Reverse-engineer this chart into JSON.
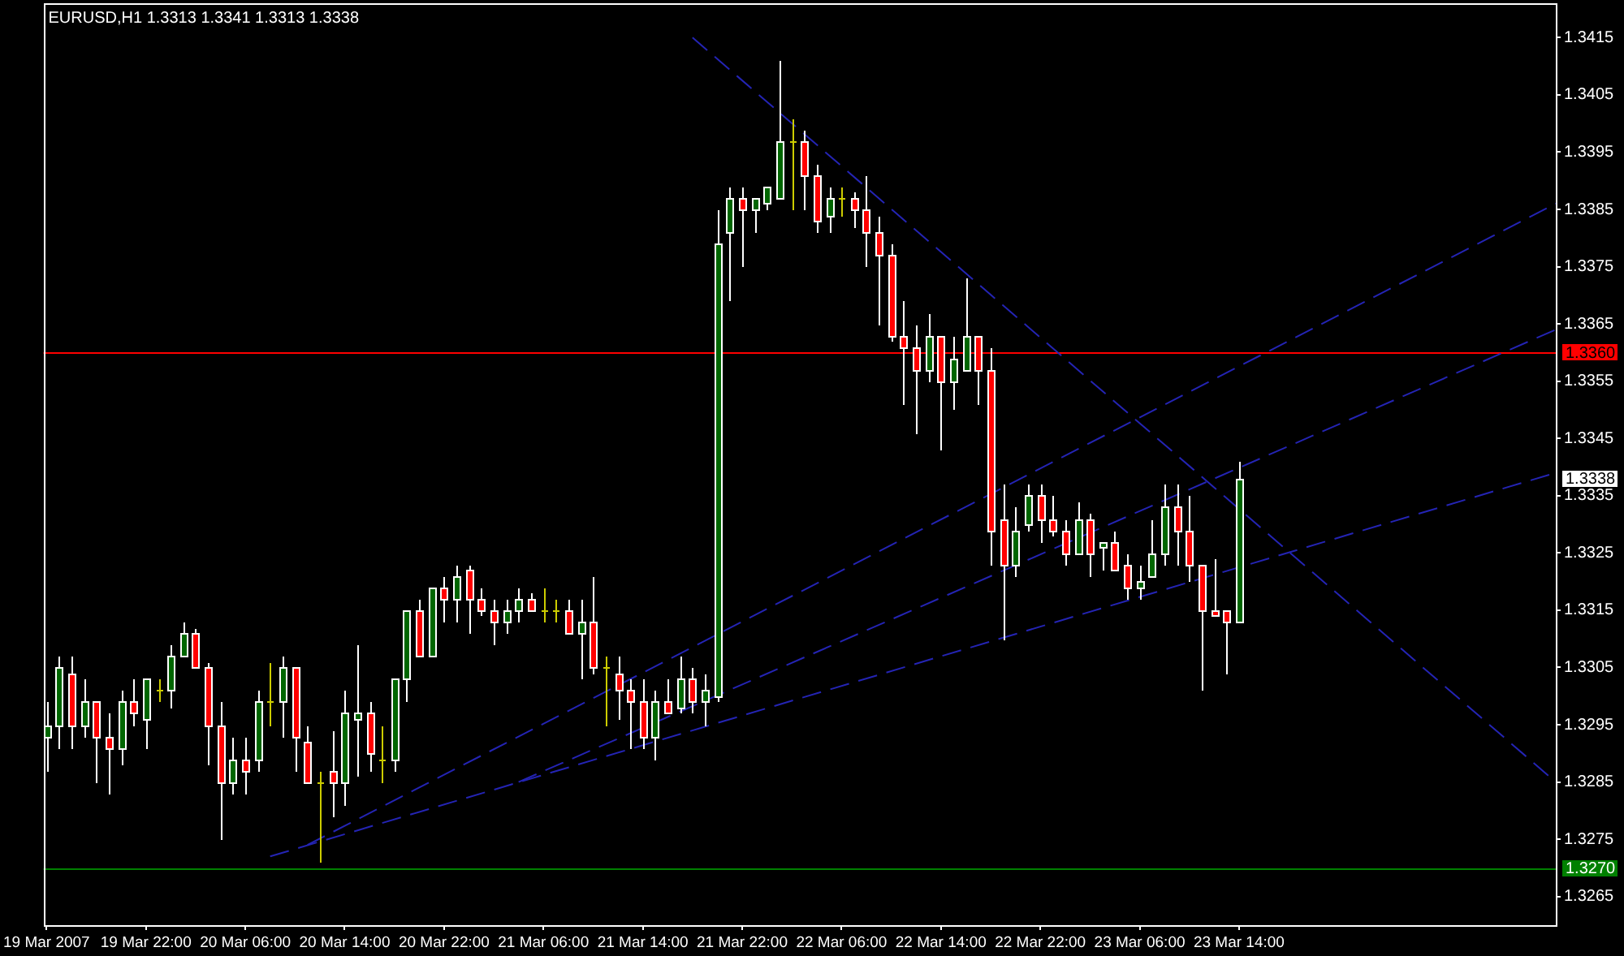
{
  "chart_data": {
    "type": "candlestick",
    "title": "EURUSD,H1 1.3313 1.3341 1.3313 1.3338",
    "x": [
      "2007-03-19T14:00",
      "2007-03-19T15:00",
      "2007-03-19T16:00",
      "2007-03-19T17:00",
      "2007-03-19T18:00",
      "2007-03-19T19:00",
      "2007-03-19T20:00",
      "2007-03-19T21:00",
      "2007-03-19T22:00",
      "2007-03-19T23:00",
      "2007-03-20T00:00",
      "2007-03-20T01:00",
      "2007-03-20T02:00",
      "2007-03-20T03:00",
      "2007-03-20T04:00",
      "2007-03-20T05:00",
      "2007-03-20T06:00",
      "2007-03-20T07:00",
      "2007-03-20T08:00",
      "2007-03-20T09:00",
      "2007-03-20T10:00",
      "2007-03-20T11:00",
      "2007-03-20T12:00",
      "2007-03-20T13:00",
      "2007-03-20T14:00",
      "2007-03-20T15:00",
      "2007-03-20T16:00",
      "2007-03-20T17:00",
      "2007-03-20T18:00",
      "2007-03-20T19:00",
      "2007-03-20T20:00",
      "2007-03-20T21:00",
      "2007-03-20T22:00",
      "2007-03-20T23:00",
      "2007-03-21T00:00",
      "2007-03-21T01:00",
      "2007-03-21T02:00",
      "2007-03-21T03:00",
      "2007-03-21T04:00",
      "2007-03-21T05:00",
      "2007-03-21T06:00",
      "2007-03-21T07:00",
      "2007-03-21T08:00",
      "2007-03-21T09:00",
      "2007-03-21T10:00",
      "2007-03-21T11:00",
      "2007-03-21T12:00",
      "2007-03-21T13:00",
      "2007-03-21T14:00",
      "2007-03-21T15:00",
      "2007-03-21T16:00",
      "2007-03-21T17:00",
      "2007-03-21T18:00",
      "2007-03-21T19:00",
      "2007-03-21T20:00",
      "2007-03-21T21:00",
      "2007-03-21T22:00",
      "2007-03-21T23:00",
      "2007-03-22T00:00",
      "2007-03-22T01:00",
      "2007-03-22T02:00",
      "2007-03-22T03:00",
      "2007-03-22T04:00",
      "2007-03-22T05:00",
      "2007-03-22T06:00",
      "2007-03-22T07:00",
      "2007-03-22T08:00",
      "2007-03-22T09:00",
      "2007-03-22T10:00",
      "2007-03-22T11:00",
      "2007-03-22T12:00",
      "2007-03-22T13:00",
      "2007-03-22T14:00",
      "2007-03-22T15:00",
      "2007-03-22T16:00",
      "2007-03-22T17:00",
      "2007-03-22T18:00",
      "2007-03-22T19:00",
      "2007-03-22T20:00",
      "2007-03-22T21:00",
      "2007-03-22T22:00",
      "2007-03-22T23:00",
      "2007-03-23T00:00",
      "2007-03-23T01:00",
      "2007-03-23T02:00",
      "2007-03-23T03:00",
      "2007-03-23T04:00",
      "2007-03-23T05:00",
      "2007-03-23T06:00",
      "2007-03-23T07:00",
      "2007-03-23T08:00",
      "2007-03-23T09:00",
      "2007-03-23T10:00",
      "2007-03-23T11:00",
      "2007-03-23T12:00",
      "2007-03-23T13:00",
      "2007-03-23T14:00"
    ],
    "ohlc": [
      [
        1.3293,
        1.3299,
        1.3287,
        1.3295
      ],
      [
        1.3295,
        1.3307,
        1.3291,
        1.3305
      ],
      [
        1.3304,
        1.3307,
        1.3291,
        1.3295
      ],
      [
        1.3295,
        1.3303,
        1.3293,
        1.3299
      ],
      [
        1.3299,
        1.3299,
        1.3285,
        1.3293
      ],
      [
        1.3293,
        1.3297,
        1.3283,
        1.3291
      ],
      [
        1.3291,
        1.3301,
        1.3288,
        1.3299
      ],
      [
        1.3299,
        1.3303,
        1.3295,
        1.3297
      ],
      [
        1.3296,
        1.3303,
        1.3291,
        1.3303
      ],
      [
        1.3301,
        1.3303,
        1.3299,
        1.3301
      ],
      [
        1.3301,
        1.3309,
        1.3298,
        1.3307
      ],
      [
        1.3307,
        1.3313,
        1.3307,
        1.3311
      ],
      [
        1.3311,
        1.3312,
        1.3305,
        1.3305
      ],
      [
        1.3305,
        1.3306,
        1.3288,
        1.3295
      ],
      [
        1.3295,
        1.3299,
        1.3275,
        1.3285
      ],
      [
        1.3285,
        1.3293,
        1.3283,
        1.3289
      ],
      [
        1.3289,
        1.3293,
        1.3283,
        1.3287
      ],
      [
        1.3289,
        1.3301,
        1.3287,
        1.3299
      ],
      [
        1.3299,
        1.3306,
        1.3295,
        1.3299
      ],
      [
        1.3299,
        1.3307,
        1.3293,
        1.3305
      ],
      [
        1.3305,
        1.3305,
        1.3287,
        1.3293
      ],
      [
        1.3292,
        1.3295,
        1.3285,
        1.3285
      ],
      [
        1.3285,
        1.3287,
        1.3271,
        1.3285
      ],
      [
        1.3287,
        1.3294,
        1.3279,
        1.3285
      ],
      [
        1.3285,
        1.3301,
        1.3281,
        1.3297
      ],
      [
        1.3296,
        1.3309,
        1.3286,
        1.3297
      ],
      [
        1.3297,
        1.3299,
        1.3287,
        1.329
      ],
      [
        1.3289,
        1.3295,
        1.3285,
        1.3289
      ],
      [
        1.3289,
        1.3303,
        1.3287,
        1.3303
      ],
      [
        1.3303,
        1.3315,
        1.3299,
        1.3315
      ],
      [
        1.3315,
        1.3317,
        1.3307,
        1.3307
      ],
      [
        1.3307,
        1.3319,
        1.3307,
        1.3319
      ],
      [
        1.3319,
        1.3321,
        1.3313,
        1.3317
      ],
      [
        1.3317,
        1.3323,
        1.3313,
        1.3321
      ],
      [
        1.3322,
        1.3323,
        1.3311,
        1.3317
      ],
      [
        1.3317,
        1.3319,
        1.3314,
        1.3315
      ],
      [
        1.3315,
        1.3317,
        1.3309,
        1.3313
      ],
      [
        1.3313,
        1.3317,
        1.3311,
        1.3315
      ],
      [
        1.3315,
        1.3319,
        1.3313,
        1.3317
      ],
      [
        1.3317,
        1.3318,
        1.3315,
        1.3315
      ],
      [
        1.3315,
        1.3319,
        1.3313,
        1.3315
      ],
      [
        1.3315,
        1.3317,
        1.3313,
        1.3315
      ],
      [
        1.3315,
        1.3317,
        1.3311,
        1.3311
      ],
      [
        1.3311,
        1.3317,
        1.3303,
        1.3313
      ],
      [
        1.3313,
        1.3321,
        1.3304,
        1.3305
      ],
      [
        1.3305,
        1.3307,
        1.3295,
        1.3305
      ],
      [
        1.3304,
        1.3307,
        1.3296,
        1.3301
      ],
      [
        1.3301,
        1.3303,
        1.3291,
        1.3299
      ],
      [
        1.3299,
        1.3303,
        1.3291,
        1.3293
      ],
      [
        1.3293,
        1.3301,
        1.3289,
        1.3299
      ],
      [
        1.3299,
        1.3303,
        1.3297,
        1.3297
      ],
      [
        1.3298,
        1.3307,
        1.3297,
        1.3303
      ],
      [
        1.3303,
        1.3305,
        1.3297,
        1.3299
      ],
      [
        1.3299,
        1.3304,
        1.3295,
        1.3301
      ],
      [
        1.33,
        1.3385,
        1.3299,
        1.3379
      ],
      [
        1.3381,
        1.3389,
        1.3369,
        1.3387
      ],
      [
        1.3387,
        1.3389,
        1.3375,
        1.3385
      ],
      [
        1.3385,
        1.3387,
        1.3381,
        1.3387
      ],
      [
        1.3386,
        1.3389,
        1.3385,
        1.3389
      ],
      [
        1.3387,
        1.3411,
        1.3387,
        1.3397
      ],
      [
        1.3397,
        1.3401,
        1.3385,
        1.3397
      ],
      [
        1.3397,
        1.3399,
        1.3385,
        1.3391
      ],
      [
        1.3391,
        1.3393,
        1.3381,
        1.3383
      ],
      [
        1.3384,
        1.3389,
        1.3381,
        1.3387
      ],
      [
        1.3387,
        1.3389,
        1.3384,
        1.3387
      ],
      [
        1.3387,
        1.3388,
        1.3382,
        1.3385
      ],
      [
        1.3385,
        1.3391,
        1.3375,
        1.3381
      ],
      [
        1.3381,
        1.3384,
        1.3365,
        1.3377
      ],
      [
        1.3377,
        1.3379,
        1.3362,
        1.3363
      ],
      [
        1.3363,
        1.3369,
        1.3351,
        1.3361
      ],
      [
        1.3361,
        1.3365,
        1.3346,
        1.3357
      ],
      [
        1.3357,
        1.3367,
        1.3355,
        1.3363
      ],
      [
        1.3363,
        1.3363,
        1.3343,
        1.3355
      ],
      [
        1.3355,
        1.3363,
        1.335,
        1.3359
      ],
      [
        1.3357,
        1.3373,
        1.3357,
        1.3363
      ],
      [
        1.3363,
        1.3363,
        1.3351,
        1.3357
      ],
      [
        1.3357,
        1.3361,
        1.3323,
        1.3329
      ],
      [
        1.3331,
        1.3337,
        1.331,
        1.3323
      ],
      [
        1.3323,
        1.3333,
        1.3321,
        1.3329
      ],
      [
        1.333,
        1.3337,
        1.3329,
        1.3335
      ],
      [
        1.3335,
        1.3337,
        1.3327,
        1.3331
      ],
      [
        1.3331,
        1.3335,
        1.3328,
        1.3329
      ],
      [
        1.3329,
        1.3331,
        1.3323,
        1.3325
      ],
      [
        1.3325,
        1.3334,
        1.3325,
        1.3331
      ],
      [
        1.3331,
        1.3332,
        1.3321,
        1.3325
      ],
      [
        1.3326,
        1.3327,
        1.3322,
        1.3327
      ],
      [
        1.3327,
        1.3329,
        1.3322,
        1.3322
      ],
      [
        1.3323,
        1.3325,
        1.3317,
        1.3319
      ],
      [
        1.3319,
        1.3323,
        1.3317,
        1.332
      ],
      [
        1.3321,
        1.3331,
        1.3321,
        1.3325
      ],
      [
        1.3325,
        1.3337,
        1.3323,
        1.3333
      ],
      [
        1.3333,
        1.3337,
        1.3323,
        1.3329
      ],
      [
        1.3329,
        1.3335,
        1.332,
        1.3323
      ],
      [
        1.3323,
        1.3323,
        1.3301,
        1.3315
      ],
      [
        1.3315,
        1.3324,
        1.3314,
        1.3314
      ],
      [
        1.3315,
        1.3315,
        1.3304,
        1.3313
      ],
      [
        1.3313,
        1.3341,
        1.3313,
        1.3338
      ]
    ],
    "colors": [
      "#006600",
      "#006600",
      "#ff0000",
      "#006600",
      "#ff0000",
      "#ff0000",
      "#006600",
      "#ff0000",
      "#006600",
      "#cccc00",
      "#006600",
      "#006600",
      "#ff0000",
      "#ff0000",
      "#ff0000",
      "#006600",
      "#ff0000",
      "#006600",
      "#cccc00",
      "#006600",
      "#ff0000",
      "#ff0000",
      "#cccc00",
      "#ff0000",
      "#006600",
      "#006600",
      "#ff0000",
      "#cccc00",
      "#006600",
      "#006600",
      "#ff0000",
      "#006600",
      "#ff0000",
      "#006600",
      "#ff0000",
      "#ff0000",
      "#ff0000",
      "#006600",
      "#006600",
      "#ff0000",
      "#cccc00",
      "#cccc00",
      "#ff0000",
      "#006600",
      "#ff0000",
      "#cccc00",
      "#ff0000",
      "#ff0000",
      "#ff0000",
      "#006600",
      "#ff0000",
      "#006600",
      "#ff0000",
      "#006600",
      "#006600",
      "#006600",
      "#ff0000",
      "#006600",
      "#006600",
      "#006600",
      "#cccc00",
      "#ff0000",
      "#ff0000",
      "#006600",
      "#cccc00",
      "#ff0000",
      "#ff0000",
      "#ff0000",
      "#ff0000",
      "#ff0000",
      "#ff0000",
      "#006600",
      "#ff0000",
      "#006600",
      "#006600",
      "#ff0000",
      "#ff0000",
      "#ff0000",
      "#006600",
      "#006600",
      "#ff0000",
      "#ff0000",
      "#ff0000",
      "#006600",
      "#ff0000",
      "#006600",
      "#ff0000",
      "#ff0000",
      "#006600",
      "#006600",
      "#006600",
      "#ff0000",
      "#ff0000",
      "#ff0000",
      "#ff0000",
      "#ff0000",
      "#006600"
    ],
    "series": [
      {
        "type": "line",
        "color": "#2424b4",
        "line_style": "dashed",
        "x": [
          "2007-03-21T18:00",
          "2007-03-24T15:30"
        ],
        "values": [
          1.3415,
          1.3285
        ]
      },
      {
        "type": "line",
        "color": "#2424b4",
        "line_style": "dashed",
        "x": [
          "2007-03-20T11:00",
          "2007-03-24T15:30"
        ],
        "values": [
          1.3274,
          1.3386
        ]
      },
      {
        "type": "line",
        "color": "#2424b4",
        "line_style": "dashed",
        "x": [
          "2007-03-21T04:00",
          "2007-03-24T15:30"
        ],
        "values": [
          1.3285,
          1.3364
        ]
      },
      {
        "type": "line",
        "color": "#2424b4",
        "line_style": "dashed",
        "x": [
          "2007-03-20T08:00",
          "2007-03-24T15:30"
        ],
        "values": [
          1.3272,
          1.3339
        ]
      }
    ],
    "ref_lines": [
      {
        "axis": "y",
        "value": 1.336,
        "label": "1.3360",
        "color": "#ff0000"
      },
      {
        "axis": "y",
        "value": 1.327,
        "label": "1.3270",
        "color": "#008000"
      }
    ],
    "annotations": [
      "1.3338"
    ],
    "xlim": [
      "2007-03-19T13:45",
      "2007-03-24T15:30"
    ],
    "xticks": [
      {
        "value": "2007-03-19T14:00",
        "label": "19 Mar 2007"
      },
      {
        "value": "2007-03-19T22:00",
        "label": "19 Mar 22:00"
      },
      {
        "value": "2007-03-20T06:00",
        "label": "20 Mar 06:00"
      },
      {
        "value": "2007-03-20T14:00",
        "label": "20 Mar 14:00"
      },
      {
        "value": "2007-03-20T22:00",
        "label": "20 Mar 22:00"
      },
      {
        "value": "2007-03-21T06:00",
        "label": "21 Mar 06:00"
      },
      {
        "value": "2007-03-21T14:00",
        "label": "21 Mar 14:00"
      },
      {
        "value": "2007-03-21T22:00",
        "label": "21 Mar 22:00"
      },
      {
        "value": "2007-03-22T06:00",
        "label": "22 Mar 06:00"
      },
      {
        "value": "2007-03-22T14:00",
        "label": "22 Mar 14:00"
      },
      {
        "value": "2007-03-22T22:00",
        "label": "22 Mar 22:00"
      },
      {
        "value": "2007-03-23T06:00",
        "label": "23 Mar 06:00"
      },
      {
        "value": "2007-03-23T14:00",
        "label": "23 Mar 14:00"
      }
    ],
    "ylim": [
      1.326,
      1.3421
    ],
    "yticks": [
      1.3265,
      1.3275,
      1.3285,
      1.3295,
      1.3305,
      1.3315,
      1.3325,
      1.3335,
      1.3345,
      1.3355,
      1.3365,
      1.3375,
      1.3385,
      1.3395,
      1.3405,
      1.3415
    ]
  }
}
